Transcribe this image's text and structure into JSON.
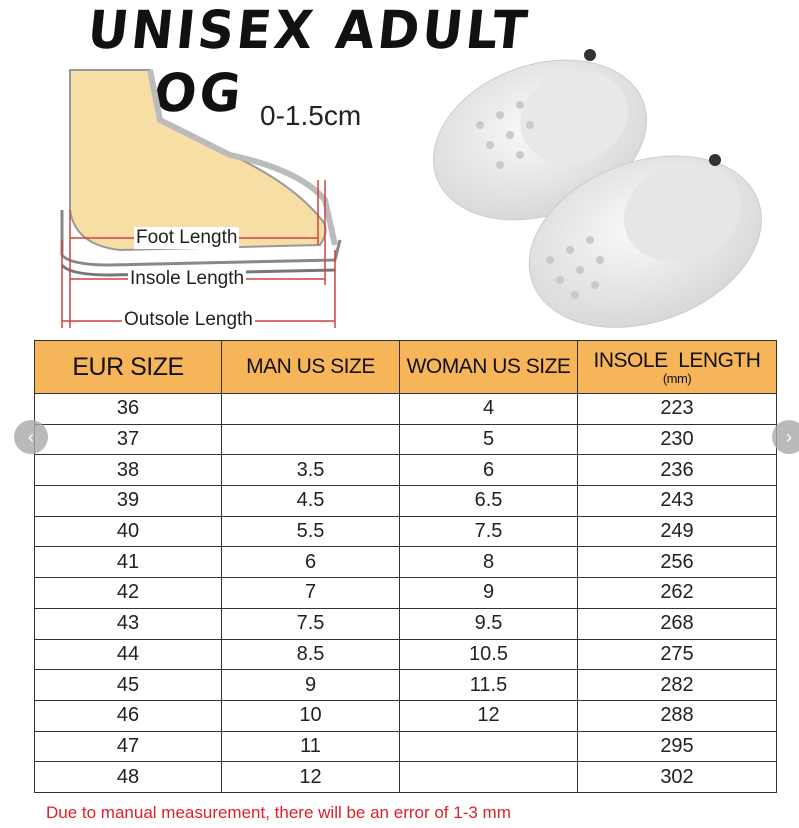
{
  "title": "UNISEX ADULT CLOG",
  "diagram": {
    "toe_gap": "0-1.5cm",
    "foot_length": "Foot Length",
    "insole_length": "Insole Length",
    "outsole_length": "Outsole Length"
  },
  "table": {
    "headers": [
      "EUR SIZE",
      "MAN US SIZE",
      "WOMAN US SIZE",
      "INSOLE  LENGTH"
    ],
    "insole_unit": "(mm)",
    "rows": [
      [
        "36",
        "",
        "4",
        "223"
      ],
      [
        "37",
        "",
        "5",
        "230"
      ],
      [
        "38",
        "3.5",
        "6",
        "236"
      ],
      [
        "39",
        "4.5",
        "6.5",
        "243"
      ],
      [
        "40",
        "5.5",
        "7.5",
        "249"
      ],
      [
        "41",
        "6",
        "8",
        "256"
      ],
      [
        "42",
        "7",
        "9",
        "262"
      ],
      [
        "43",
        "7.5",
        "9.5",
        "268"
      ],
      [
        "44",
        "8.5",
        "10.5",
        "275"
      ],
      [
        "45",
        "9",
        "11.5",
        "282"
      ],
      [
        "46",
        "10",
        "12",
        "288"
      ],
      [
        "47",
        "11",
        "",
        "295"
      ],
      [
        "48",
        "12",
        "",
        "302"
      ]
    ]
  },
  "note": "Due to manual measurement, there will be an error of 1-3 mm",
  "nav": {
    "prev": "‹",
    "next": "›"
  },
  "colors": {
    "header_bg": "#f7b55a",
    "note": "#e0202a"
  }
}
